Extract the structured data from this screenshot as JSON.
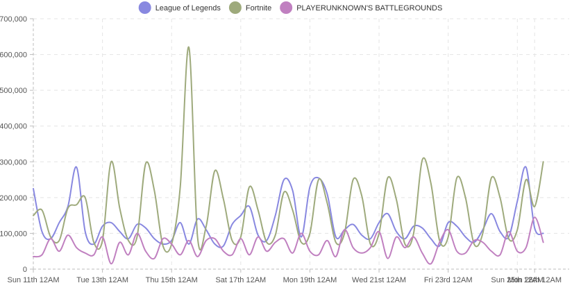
{
  "chart_data": {
    "type": "line",
    "title": "",
    "xlabel": "",
    "ylabel": "",
    "ylim": [
      0,
      700000
    ],
    "y_ticks": [
      0,
      100000,
      200000,
      300000,
      400000,
      500000,
      600000,
      700000
    ],
    "y_tick_labels": [
      "0",
      "100,000",
      "200,000",
      "300,000",
      "400,000",
      "500,000",
      "600,000",
      "700,000"
    ],
    "x_unit": "days since Sun 11th 12AM",
    "xlim": [
      0,
      15.5
    ],
    "x_ticks": [
      0,
      2,
      4,
      6,
      8,
      10,
      12,
      14,
      14.5
    ],
    "x_tick_labels": [
      "Sun 11th 12AM",
      "Tue 13th 12AM",
      "Thu 15th 12AM",
      "Sat 17th 12AM",
      "Mon 19th 12AM",
      "Wed 21st 12AM",
      "Fri 23rd 12AM",
      "Sun 25th 12AM",
      "Mon 26th 12AM"
    ],
    "grid": true,
    "legend_position": "top-center",
    "x": [
      0,
      0.25,
      0.5,
      0.75,
      1,
      1.25,
      1.5,
      1.75,
      2,
      2.25,
      2.5,
      2.75,
      3,
      3.25,
      3.5,
      3.75,
      4,
      4.25,
      4.5,
      4.75,
      5,
      5.25,
      5.5,
      5.75,
      6,
      6.25,
      6.5,
      6.75,
      7,
      7.25,
      7.5,
      7.75,
      8,
      8.25,
      8.5,
      8.75,
      9,
      9.25,
      9.5,
      9.75,
      10,
      10.25,
      10.5,
      10.75,
      11,
      11.25,
      11.5,
      11.75,
      12,
      12.25,
      12.5,
      12.75,
      13,
      13.25,
      13.5,
      13.75,
      14,
      14.25,
      14.5,
      14.75
    ],
    "series": [
      {
        "name": "League of Legends",
        "color": "#8888e0",
        "values": [
          225000,
          105000,
          85000,
          130000,
          175000,
          285000,
          105000,
          70000,
          120000,
          130000,
          105000,
          85000,
          125000,
          115000,
          85000,
          70000,
          80000,
          130000,
          70000,
          140000,
          110000,
          70000,
          65000,
          125000,
          150000,
          175000,
          95000,
          80000,
          150000,
          250000,
          220000,
          90000,
          230000,
          255000,
          210000,
          90000,
          110000,
          125000,
          95000,
          85000,
          130000,
          155000,
          105000,
          85000,
          120000,
          115000,
          85000,
          65000,
          130000,
          120000,
          90000,
          75000,
          110000,
          155000,
          105000,
          90000,
          190000,
          285000,
          115000,
          100000
        ]
      },
      {
        "name": "Fortnite",
        "color": "#9eaa7c",
        "values": [
          150000,
          165000,
          90000,
          80000,
          170000,
          180000,
          200000,
          75000,
          80000,
          300000,
          170000,
          80000,
          90000,
          295000,
          220000,
          65000,
          70000,
          230000,
          620000,
          90000,
          120000,
          275000,
          195000,
          80000,
          90000,
          230000,
          165000,
          75000,
          95000,
          215000,
          165000,
          75000,
          100000,
          250000,
          185000,
          75000,
          100000,
          250000,
          205000,
          70000,
          100000,
          255000,
          195000,
          70000,
          100000,
          305000,
          240000,
          80000,
          90000,
          255000,
          200000,
          70000,
          100000,
          255000,
          200000,
          85000,
          110000,
          250000,
          175000,
          300000
        ]
      },
      {
        "name": "PLAYERUNKNOWN'S BATTLEGROUNDS",
        "color": "#c080c0",
        "values": [
          35000,
          40000,
          85000,
          50000,
          95000,
          60000,
          45000,
          40000,
          90000,
          15000,
          75000,
          40000,
          100000,
          50000,
          30000,
          85000,
          70000,
          40000,
          80000,
          35000,
          80000,
          85000,
          50000,
          40000,
          85000,
          40000,
          90000,
          50000,
          75000,
          85000,
          45000,
          100000,
          50000,
          40000,
          80000,
          35000,
          110000,
          60000,
          45000,
          60000,
          105000,
          30000,
          90000,
          60000,
          90000,
          45000,
          15000,
          75000,
          110000,
          50000,
          45000,
          80000,
          75000,
          50000,
          40000,
          105000,
          50000,
          60000,
          145000,
          75000
        ]
      }
    ]
  }
}
